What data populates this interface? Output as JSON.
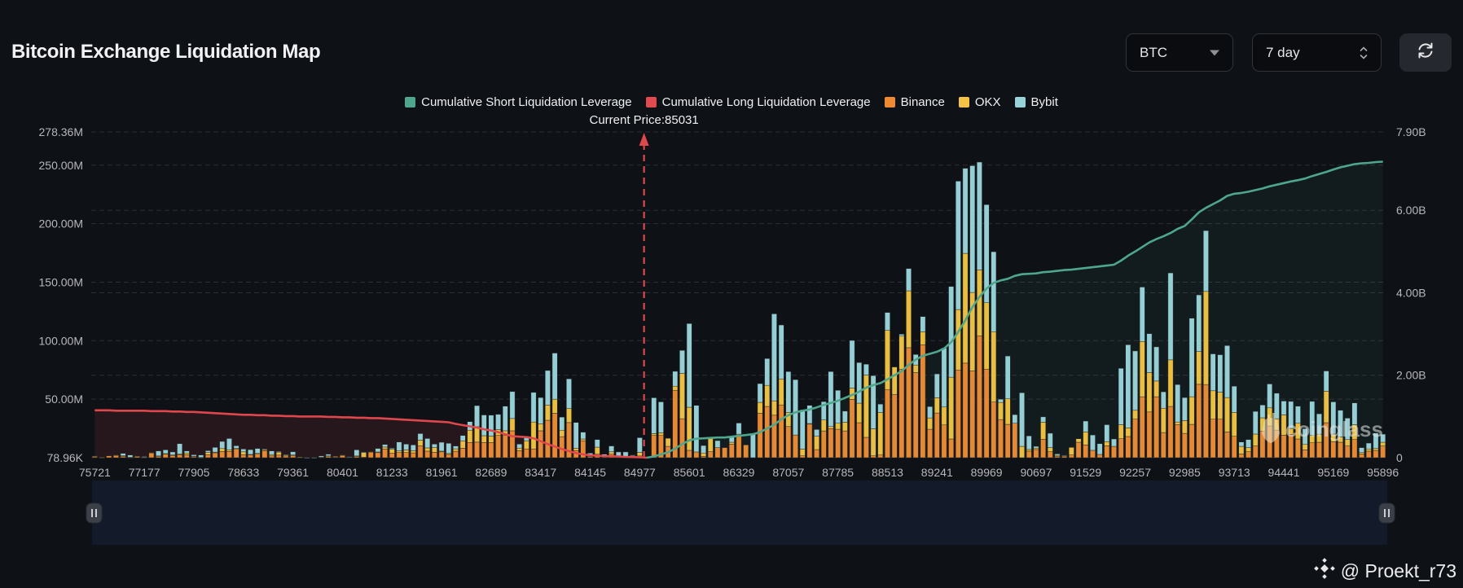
{
  "header": {
    "title": "Bitcoin Exchange Liquidation Map"
  },
  "controls": {
    "symbol": {
      "value": "BTC",
      "icon": "caret-down-icon"
    },
    "range": {
      "value": "7 day",
      "icon": "up-down-chevron-icon"
    },
    "refresh": {
      "icon": "refresh-icon"
    }
  },
  "legend": [
    {
      "label": "Cumulative Short Liquidation Leverage",
      "color": "#4ea68c"
    },
    {
      "label": "Cumulative Long Liquidation Leverage",
      "color": "#e14a4f"
    },
    {
      "label": "Binance",
      "color": "#f08a2f"
    },
    {
      "label": "OKX",
      "color": "#f5c343"
    },
    {
      "label": "Bybit",
      "color": "#98d3da"
    }
  ],
  "current_price": {
    "label": "Current Price:85031",
    "value": 85031
  },
  "slider": {
    "selection_percent": [
      0,
      100
    ],
    "handle_icon": "grip-icon"
  },
  "watermark": {
    "chart_brand": "coinglass",
    "attribution": "@ Proekt_r73",
    "attribution_icon": "binance-logo-icon"
  },
  "chart_data": {
    "type": "bar",
    "stacked": true,
    "title": "Bitcoin Exchange Liquidation Map",
    "xlabel": "",
    "legend_position": "top-center",
    "grid": true,
    "bar_count": 183,
    "tick_every": 7,
    "x_tick_labels": [
      "75721",
      "77177",
      "77905",
      "78633",
      "79361",
      "80401",
      "81233",
      "81961",
      "82689",
      "83417",
      "84145",
      "84977",
      "85601",
      "86329",
      "87057",
      "87785",
      "88513",
      "89241",
      "89969",
      "90697",
      "91529",
      "92257",
      "92985",
      "93713",
      "94441",
      "95169",
      "95896"
    ],
    "y_left": {
      "unit": "M USD",
      "ylim": [
        0.07896,
        278.36
      ],
      "ticks": [
        {
          "value": 278.36,
          "label": "278.36M"
        },
        {
          "value": 250,
          "label": "250.00M"
        },
        {
          "value": 200,
          "label": "200.00M"
        },
        {
          "value": 150,
          "label": "150.00M"
        },
        {
          "value": 100,
          "label": "100.00M"
        },
        {
          "value": 50,
          "label": "50.00M"
        },
        {
          "value": 0.07896,
          "label": "78.96K"
        }
      ]
    },
    "y_right": {
      "unit": "B USD",
      "ylim": [
        0,
        7.9
      ],
      "ticks": [
        {
          "value": 7.9,
          "label": "7.90B"
        },
        {
          "value": 6,
          "label": "6.00B"
        },
        {
          "value": 4,
          "label": "4.00B"
        },
        {
          "value": 2,
          "label": "2.00B"
        },
        {
          "value": 0,
          "label": "0"
        }
      ]
    },
    "current_price": 85031,
    "series": [
      {
        "name": "Binance",
        "color": "#e8892f",
        "values": [
          0.8,
          0.2,
          1.6,
          2.0,
          1.2,
          0.3,
          1.2,
          0.3,
          4.0,
          1.2,
          3.0,
          2.0,
          2.5,
          2.5,
          1.0,
          0.2,
          2.5,
          4.2,
          5.3,
          5.3,
          7.2,
          2.5,
          2.3,
          3.0,
          6.0,
          1.5,
          2.2,
          1.5,
          2.1,
          0.3,
          0.1,
          0.1,
          0.4,
          1.0,
          0.8,
          2.0,
          0.5,
          1.0,
          0.5,
          4.8,
          4.3,
          7.3,
          4.0,
          4.4,
          4.4,
          4.1,
          10.1,
          5.6,
          4.6,
          5.0,
          2.8,
          5.5,
          8.1,
          13.0,
          13.3,
          13.0,
          13.0,
          19.0,
          19.0,
          23.0,
          6.0,
          7.5,
          7.5,
          23.0,
          32.0,
          38.0,
          18.0,
          30.0,
          6.0,
          14.5,
          1.0,
          3.0,
          0.5,
          3.0,
          0.5,
          0.5,
          0.9,
          1.5,
          0.3,
          19.0,
          19.0,
          9.7,
          57.6,
          33.3,
          6.3,
          4.9,
          1.2,
          5.1,
          8.6,
          8.6,
          11.6,
          20.1,
          10.9,
          0,
          38.0,
          43.8,
          36.3,
          45.1,
          26.6,
          19.4,
          1.6,
          28.7,
          6.9,
          22.9,
          24.8,
          24.3,
          22.9,
          49.8,
          29.9,
          17.4,
          1.6,
          2.3,
          58.3,
          53.9,
          75.7,
          94.0,
          72.7,
          96.5,
          24.3,
          38.2,
          28.0,
          16.0,
          75.0,
          80.8,
          74.1,
          104.2,
          75.7,
          47.5,
          32.6,
          28.5,
          29.4,
          0,
          5.6,
          7.0,
          15.7,
          5.1,
          1.0,
          1.5,
          2.3,
          13.2,
          10.9,
          6.3,
          2.8,
          10.2,
          9.7,
          16.2,
          18.1,
          32.9,
          52.1,
          39.1,
          52.1,
          21.5,
          43.8,
          28.2,
          20.8,
          28.5,
          62.7,
          62.5,
          32.9,
          32.9,
          22.0,
          18.3,
          3.2,
          5.1,
          10.0,
          22.5,
          27.1,
          23.6,
          19.2,
          20.0,
          16.0,
          6.7,
          12.7,
          13.2,
          29.9,
          13.7,
          13.2,
          10.0,
          15.5,
          3.2,
          5.6,
          6.3,
          10.0
        ]
      },
      {
        "name": "OKX",
        "color": "#ebbf3c",
        "values": [
          0.6,
          0.1,
          0,
          0.3,
          0.5,
          0.2,
          0.2,
          0,
          0.4,
          0.3,
          0.5,
          0.4,
          0.7,
          1.5,
          0.3,
          0.1,
          2.0,
          0.6,
          2.5,
          1.4,
          0.8,
          2.5,
          0.5,
          0.7,
          1.0,
          1.2,
          2.6,
          1.0,
          0.3,
          0.2,
          0,
          0,
          0.2,
          0.6,
          0.4,
          0.3,
          0.2,
          0.5,
          4.2,
          0.3,
          0.6,
          1.8,
          3.2,
          1.5,
          2.2,
          1.9,
          4.9,
          2.8,
          4.0,
          0.6,
          0.8,
          2.1,
          6.3,
          10.5,
          13.2,
          5.8,
          5.5,
          5.0,
          4.0,
          10.5,
          2.2,
          7.0,
          23.0,
          6.0,
          13.0,
          12.0,
          5.5,
          12.0,
          2.0,
          1.5,
          0.5,
          6.0,
          0.5,
          2.0,
          0.4,
          0.4,
          0.9,
          3.0,
          0.2,
          1.6,
          2.3,
          6.9,
          3.5,
          38.7,
          36.8,
          0,
          2.8,
          11.6,
          0,
          0,
          1.6,
          0,
          0,
          0,
          9.3,
          18.0,
          12.3,
          22.2,
          12.0,
          0,
          5.8,
          0.5,
          11.4,
          9.3,
          1.8,
          5.1,
          7.4,
          9.7,
          16.7,
          53.2,
          23.1,
          36.3,
          50.5,
          23.6,
          28.2,
          48.6,
          6.5,
          11.1,
          9.7,
          13.0,
          15.3,
          52.8,
          51.6,
          93.8,
          67.1,
          56.3,
          56.7,
          60.2,
          14.6,
          21.8,
          0,
          9.7,
          1.4,
          1.2,
          14.6,
          3.5,
          1.0,
          0.3,
          6.5,
          3.0,
          11.1,
          0,
          0,
          3.5,
          0,
          12.0,
          7.4,
          7.6,
          47.2,
          33.6,
          13.4,
          20.8,
          39.8,
          2.3,
          10.9,
          23.6,
          28.0,
          79.6,
          24.3,
          23.1,
          29.4,
          20.4,
          6.5,
          3.5,
          10.2,
          11.6,
          15.5,
          9.7,
          17.4,
          5.0,
          13.4,
          4.6,
          6.3,
          6.9,
          26.9,
          6.5,
          4.6,
          5.5,
          12.7,
          1.2,
          1.9,
          1.6,
          3.2
        ]
      },
      {
        "name": "Bybit",
        "color": "#93cfd5",
        "values": [
          0,
          0,
          0,
          0,
          2.0,
          1.8,
          0,
          0.7,
          0,
          4.3,
          3.2,
          2.5,
          8.8,
          1.8,
          1.2,
          2.0,
          1.5,
          4.0,
          6.1,
          9.7,
          2.2,
          2.4,
          4.1,
          4.2,
          0.4,
          3.1,
          0.5,
          0.3,
          2.7,
          0,
          0.1,
          0.1,
          1.0,
          1.4,
          0,
          0,
          0.2,
          5.2,
          0.2,
          0,
          3.0,
          2.2,
          0.9,
          7.5,
          5.0,
          4.9,
          5.6,
          8.0,
          3.0,
          7.6,
          8.7,
          2.4,
          4.6,
          7.3,
          18.0,
          17.7,
          17.8,
          13.0,
          21.0,
          23.0,
          3.4,
          3.6,
          25.3,
          22.4,
          29.5,
          39.4,
          11.2,
          25.4,
          22.1,
          5.8,
          2.4,
          6.5,
          2.0,
          5.0,
          4.0,
          4.0,
          0.5,
          12.6,
          0,
          30.6,
          26.4,
          0,
          12.7,
          19.7,
          71.5,
          39.8,
          6.4,
          0,
          6.0,
          0,
          4.6,
          9.5,
          0,
          20.1,
          16.0,
          22.9,
          74.3,
          46.1,
          35.0,
          47.3,
          33.6,
          15.5,
          5.8,
          15.7,
          47.0,
          28.2,
          9.5,
          40.7,
          34.7,
          9.3,
          45.4,
          7.2,
          15.3,
          0,
          1.6,
          19.0,
          9.0,
          13.0,
          9.7,
          20.4,
          50.5,
          77.5,
          109.7,
          72.7,
          108.3,
          92.1,
          83.8,
          68.3,
          2.8,
          36.6,
          7.4,
          45.8,
          11.6,
          1.5,
          4.6,
          12.3,
          1.2,
          0.3,
          0,
          0,
          9.3,
          13.1,
          9.2,
          14.5,
          6.3,
          48.2,
          71.0,
          50.7,
          46.5,
          33.3,
          29.2,
          14.0,
          74.3,
          32.0,
          19.7,
          67.1,
          48.4,
          51.9,
          31.5,
          32.0,
          44.4,
          22.4,
          3.7,
          6.9,
          19.4,
          10.9,
          20.4,
          21.8,
          11.8,
          23.1,
          14.6,
          13.5,
          29.1,
          17.4,
          17.3,
          27.5,
          22.7,
          18.3,
          18.6,
          4.2,
          5.0,
          13.2,
          6.9
        ]
      }
    ],
    "lines": [
      {
        "name": "Cumulative Long Liquidation Leverage",
        "axis": "right",
        "color": "#e0474c",
        "fill": "#e0474c",
        "start_index": 0,
        "values": [
          1.15,
          1.15,
          1.15,
          1.14,
          1.14,
          1.14,
          1.14,
          1.14,
          1.13,
          1.13,
          1.13,
          1.12,
          1.12,
          1.11,
          1.11,
          1.1,
          1.09,
          1.08,
          1.07,
          1.06,
          1.05,
          1.04,
          1.04,
          1.03,
          1.03,
          1.02,
          1.02,
          1.01,
          1.01,
          1.0,
          1.0,
          1.0,
          1.0,
          0.99,
          0.99,
          0.98,
          0.98,
          0.97,
          0.97,
          0.96,
          0.96,
          0.95,
          0.94,
          0.93,
          0.92,
          0.91,
          0.9,
          0.89,
          0.88,
          0.87,
          0.86,
          0.82,
          0.79,
          0.76,
          0.73,
          0.69,
          0.66,
          0.62,
          0.57,
          0.52,
          0.51,
          0.5,
          0.47,
          0.4,
          0.33,
          0.27,
          0.21,
          0.16,
          0.11,
          0.08,
          0.06,
          0.05,
          0.04,
          0.035,
          0.03,
          0.02,
          0.015,
          0.01,
          0
        ]
      },
      {
        "name": "Cumulative Short Liquidation Leverage",
        "axis": "right",
        "color": "#4ea68c",
        "fill": "#4ea68c",
        "start_index": 78,
        "values": [
          0,
          0.03,
          0.08,
          0.13,
          0.22,
          0.33,
          0.42,
          0.46,
          0.47,
          0.48,
          0.49,
          0.49,
          0.51,
          0.53,
          0.55,
          0.57,
          0.62,
          0.71,
          0.8,
          0.93,
          1.03,
          1.1,
          1.14,
          1.17,
          1.22,
          1.28,
          1.33,
          1.38,
          1.45,
          1.52,
          1.6,
          1.7,
          1.76,
          1.81,
          1.9,
          2.0,
          2.1,
          2.25,
          2.38,
          2.47,
          2.52,
          2.57,
          2.65,
          2.8,
          3.05,
          3.33,
          3.65,
          3.9,
          4.1,
          4.24,
          4.3,
          4.34,
          4.41,
          4.45,
          4.46,
          4.47,
          4.5,
          4.51,
          4.53,
          4.55,
          4.56,
          4.58,
          4.6,
          4.62,
          4.64,
          4.66,
          4.68,
          4.78,
          4.9,
          5.0,
          5.11,
          5.22,
          5.3,
          5.37,
          5.45,
          5.55,
          5.62,
          5.78,
          5.95,
          6.06,
          6.15,
          6.24,
          6.35,
          6.4,
          6.42,
          6.45,
          6.49,
          6.53,
          6.58,
          6.62,
          6.66,
          6.7,
          6.73,
          6.77,
          6.83,
          6.88,
          6.93,
          6.99,
          7.04,
          7.08,
          7.12,
          7.14,
          7.15,
          7.17,
          7.18
        ]
      }
    ]
  }
}
